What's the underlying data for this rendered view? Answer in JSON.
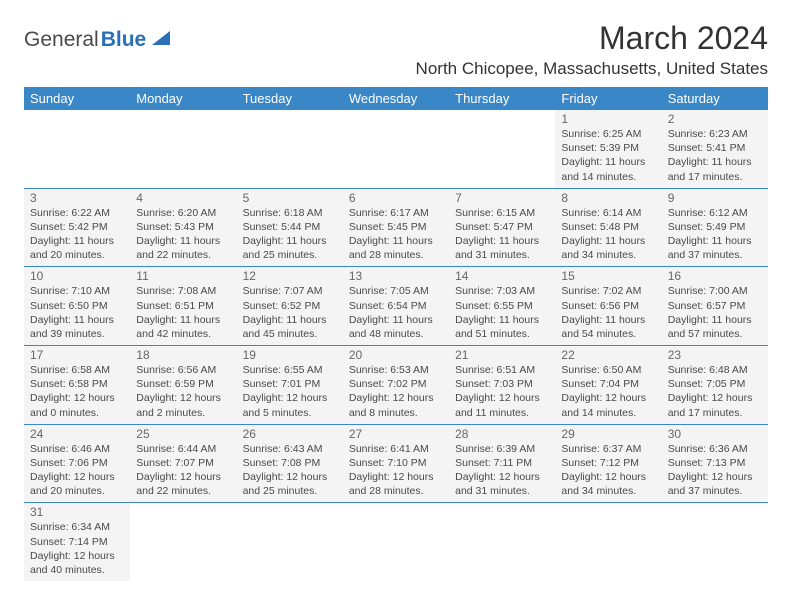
{
  "logo": {
    "text1": "General",
    "text2": "Blue"
  },
  "title": "March 2024",
  "location": "North Chicopee, Massachusetts, United States",
  "colors": {
    "header_bg": "#3a87c8",
    "header_text": "#ffffff",
    "cell_bg": "#f4f4f4",
    "border": "#3a87c8",
    "accent": "#2a6fb5",
    "text": "#4a4a4a"
  },
  "weekdays": [
    "Sunday",
    "Monday",
    "Tuesday",
    "Wednesday",
    "Thursday",
    "Friday",
    "Saturday"
  ],
  "weeks": [
    [
      null,
      null,
      null,
      null,
      null,
      {
        "day": "1",
        "sunrise": "Sunrise: 6:25 AM",
        "sunset": "Sunset: 5:39 PM",
        "daylight1": "Daylight: 11 hours",
        "daylight2": "and 14 minutes."
      },
      {
        "day": "2",
        "sunrise": "Sunrise: 6:23 AM",
        "sunset": "Sunset: 5:41 PM",
        "daylight1": "Daylight: 11 hours",
        "daylight2": "and 17 minutes."
      }
    ],
    [
      {
        "day": "3",
        "sunrise": "Sunrise: 6:22 AM",
        "sunset": "Sunset: 5:42 PM",
        "daylight1": "Daylight: 11 hours",
        "daylight2": "and 20 minutes."
      },
      {
        "day": "4",
        "sunrise": "Sunrise: 6:20 AM",
        "sunset": "Sunset: 5:43 PM",
        "daylight1": "Daylight: 11 hours",
        "daylight2": "and 22 minutes."
      },
      {
        "day": "5",
        "sunrise": "Sunrise: 6:18 AM",
        "sunset": "Sunset: 5:44 PM",
        "daylight1": "Daylight: 11 hours",
        "daylight2": "and 25 minutes."
      },
      {
        "day": "6",
        "sunrise": "Sunrise: 6:17 AM",
        "sunset": "Sunset: 5:45 PM",
        "daylight1": "Daylight: 11 hours",
        "daylight2": "and 28 minutes."
      },
      {
        "day": "7",
        "sunrise": "Sunrise: 6:15 AM",
        "sunset": "Sunset: 5:47 PM",
        "daylight1": "Daylight: 11 hours",
        "daylight2": "and 31 minutes."
      },
      {
        "day": "8",
        "sunrise": "Sunrise: 6:14 AM",
        "sunset": "Sunset: 5:48 PM",
        "daylight1": "Daylight: 11 hours",
        "daylight2": "and 34 minutes."
      },
      {
        "day": "9",
        "sunrise": "Sunrise: 6:12 AM",
        "sunset": "Sunset: 5:49 PM",
        "daylight1": "Daylight: 11 hours",
        "daylight2": "and 37 minutes."
      }
    ],
    [
      {
        "day": "10",
        "sunrise": "Sunrise: 7:10 AM",
        "sunset": "Sunset: 6:50 PM",
        "daylight1": "Daylight: 11 hours",
        "daylight2": "and 39 minutes."
      },
      {
        "day": "11",
        "sunrise": "Sunrise: 7:08 AM",
        "sunset": "Sunset: 6:51 PM",
        "daylight1": "Daylight: 11 hours",
        "daylight2": "and 42 minutes."
      },
      {
        "day": "12",
        "sunrise": "Sunrise: 7:07 AM",
        "sunset": "Sunset: 6:52 PM",
        "daylight1": "Daylight: 11 hours",
        "daylight2": "and 45 minutes."
      },
      {
        "day": "13",
        "sunrise": "Sunrise: 7:05 AM",
        "sunset": "Sunset: 6:54 PM",
        "daylight1": "Daylight: 11 hours",
        "daylight2": "and 48 minutes."
      },
      {
        "day": "14",
        "sunrise": "Sunrise: 7:03 AM",
        "sunset": "Sunset: 6:55 PM",
        "daylight1": "Daylight: 11 hours",
        "daylight2": "and 51 minutes."
      },
      {
        "day": "15",
        "sunrise": "Sunrise: 7:02 AM",
        "sunset": "Sunset: 6:56 PM",
        "daylight1": "Daylight: 11 hours",
        "daylight2": "and 54 minutes."
      },
      {
        "day": "16",
        "sunrise": "Sunrise: 7:00 AM",
        "sunset": "Sunset: 6:57 PM",
        "daylight1": "Daylight: 11 hours",
        "daylight2": "and 57 minutes."
      }
    ],
    [
      {
        "day": "17",
        "sunrise": "Sunrise: 6:58 AM",
        "sunset": "Sunset: 6:58 PM",
        "daylight1": "Daylight: 12 hours",
        "daylight2": "and 0 minutes."
      },
      {
        "day": "18",
        "sunrise": "Sunrise: 6:56 AM",
        "sunset": "Sunset: 6:59 PM",
        "daylight1": "Daylight: 12 hours",
        "daylight2": "and 2 minutes."
      },
      {
        "day": "19",
        "sunrise": "Sunrise: 6:55 AM",
        "sunset": "Sunset: 7:01 PM",
        "daylight1": "Daylight: 12 hours",
        "daylight2": "and 5 minutes."
      },
      {
        "day": "20",
        "sunrise": "Sunrise: 6:53 AM",
        "sunset": "Sunset: 7:02 PM",
        "daylight1": "Daylight: 12 hours",
        "daylight2": "and 8 minutes."
      },
      {
        "day": "21",
        "sunrise": "Sunrise: 6:51 AM",
        "sunset": "Sunset: 7:03 PM",
        "daylight1": "Daylight: 12 hours",
        "daylight2": "and 11 minutes."
      },
      {
        "day": "22",
        "sunrise": "Sunrise: 6:50 AM",
        "sunset": "Sunset: 7:04 PM",
        "daylight1": "Daylight: 12 hours",
        "daylight2": "and 14 minutes."
      },
      {
        "day": "23",
        "sunrise": "Sunrise: 6:48 AM",
        "sunset": "Sunset: 7:05 PM",
        "daylight1": "Daylight: 12 hours",
        "daylight2": "and 17 minutes."
      }
    ],
    [
      {
        "day": "24",
        "sunrise": "Sunrise: 6:46 AM",
        "sunset": "Sunset: 7:06 PM",
        "daylight1": "Daylight: 12 hours",
        "daylight2": "and 20 minutes."
      },
      {
        "day": "25",
        "sunrise": "Sunrise: 6:44 AM",
        "sunset": "Sunset: 7:07 PM",
        "daylight1": "Daylight: 12 hours",
        "daylight2": "and 22 minutes."
      },
      {
        "day": "26",
        "sunrise": "Sunrise: 6:43 AM",
        "sunset": "Sunset: 7:08 PM",
        "daylight1": "Daylight: 12 hours",
        "daylight2": "and 25 minutes."
      },
      {
        "day": "27",
        "sunrise": "Sunrise: 6:41 AM",
        "sunset": "Sunset: 7:10 PM",
        "daylight1": "Daylight: 12 hours",
        "daylight2": "and 28 minutes."
      },
      {
        "day": "28",
        "sunrise": "Sunrise: 6:39 AM",
        "sunset": "Sunset: 7:11 PM",
        "daylight1": "Daylight: 12 hours",
        "daylight2": "and 31 minutes."
      },
      {
        "day": "29",
        "sunrise": "Sunrise: 6:37 AM",
        "sunset": "Sunset: 7:12 PM",
        "daylight1": "Daylight: 12 hours",
        "daylight2": "and 34 minutes."
      },
      {
        "day": "30",
        "sunrise": "Sunrise: 6:36 AM",
        "sunset": "Sunset: 7:13 PM",
        "daylight1": "Daylight: 12 hours",
        "daylight2": "and 37 minutes."
      }
    ],
    [
      {
        "day": "31",
        "sunrise": "Sunrise: 6:34 AM",
        "sunset": "Sunset: 7:14 PM",
        "daylight1": "Daylight: 12 hours",
        "daylight2": "and 40 minutes."
      },
      null,
      null,
      null,
      null,
      null,
      null
    ]
  ]
}
